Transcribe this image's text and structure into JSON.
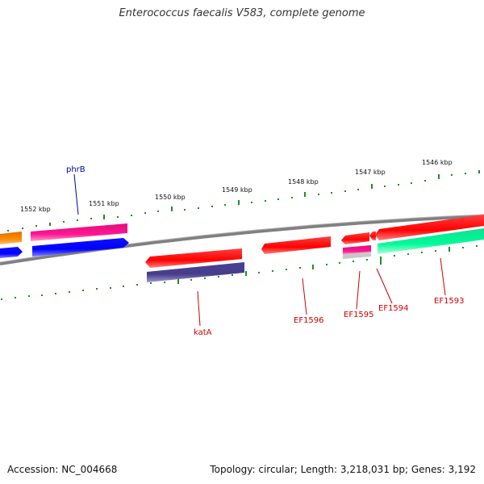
{
  "title": "Enterococcus faecalis V583, complete genome",
  "footer": {
    "accession": "Accession: NC_004668",
    "summary": "Topology: circular; Length: 3,218,031 bp; Genes: 3,192"
  },
  "scale_labels": [
    "1552 kbp",
    "1551 kbp",
    "1550 kbp",
    "1549 kbp",
    "1548 kbp",
    "1547 kbp",
    "1546 kbp"
  ],
  "gene_labels": {
    "phrB": "phrB",
    "katA": "katA",
    "EF1596": "EF1596",
    "EF1595": "EF1595",
    "EF1594": "EF1594",
    "EF1593": "EF1593"
  },
  "colors": {
    "backbone": "#808080",
    "ticks": "#228b22",
    "red": "#ff0000",
    "pink": "#ff1493",
    "blue": "#0000ff",
    "orange": "#ff8c00",
    "slate": "#483d8b",
    "green": "#00fa9a",
    "label_red": "#cc0000",
    "label_blue": "#000099"
  }
}
